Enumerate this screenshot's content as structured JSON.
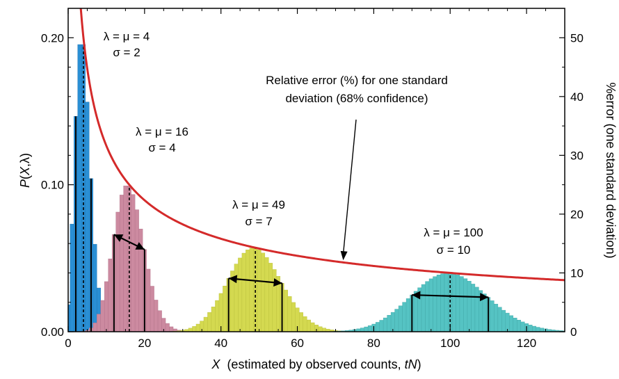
{
  "chart_data": {
    "type": "bar",
    "title": "",
    "xlabel": {
      "var": "X",
      "text": "  (estimated by observed counts, ",
      "italic": "tN",
      "close": ")"
    },
    "ylabel_left": {
      "var1": "P",
      "rest": "(",
      "var2": "X",
      "tail": ",λ)"
    },
    "ylabel_right": "%error (one standard deviation)",
    "xlim": [
      0,
      130
    ],
    "ylim_left": [
      0,
      0.22
    ],
    "ylim_right": [
      0,
      55
    ],
    "x_ticks": [
      0,
      20,
      40,
      60,
      80,
      100,
      120
    ],
    "x_tick_labels": [
      "0",
      "20",
      "40",
      "60",
      "80",
      "100",
      "120"
    ],
    "y_left_ticks": [
      0,
      0.1,
      0.2
    ],
    "y_left_tick_labels": [
      "0.00",
      "0.10",
      "0.20"
    ],
    "y_right_ticks": [
      0,
      10,
      20,
      30,
      40,
      50
    ],
    "y_right_tick_labels": [
      "0",
      "10",
      "20",
      "30",
      "40",
      "50"
    ],
    "series": [
      {
        "lambda": 4,
        "sigma": 2,
        "color": "#2a8fd4",
        "edge": "#1c6fb0",
        "label1": "λ = μ = 4",
        "label2": "σ = 2",
        "x_range": [
          0,
          14
        ]
      },
      {
        "lambda": 16,
        "sigma": 4,
        "color": "#cc8aa0",
        "edge": "#b06f86",
        "label1": "λ = μ = 16",
        "label2": "σ = 4",
        "x_range": [
          4,
          31
        ]
      },
      {
        "lambda": 49,
        "sigma": 7,
        "color": "#d4d950",
        "edge": "#b9be3a",
        "label1": "λ = μ = 49",
        "label2": "σ = 7",
        "x_range": [
          28,
          72
        ]
      },
      {
        "lambda": 100,
        "sigma": 10,
        "color": "#55c3c3",
        "edge": "#3fa6a6",
        "label1": "λ = μ = 100",
        "label2": "σ = 10",
        "x_range": [
          68,
          130
        ]
      }
    ],
    "error_curve": {
      "formula": "100/sqrt(X)",
      "color": "#d42a2a",
      "x_range": [
        3.3,
        130
      ]
    },
    "annotation": {
      "line1": "Relative error (%) for one standard",
      "line2": "deviation (68% confidence)",
      "arrow_to": {
        "x": 72,
        "err": 11.8
      }
    }
  }
}
